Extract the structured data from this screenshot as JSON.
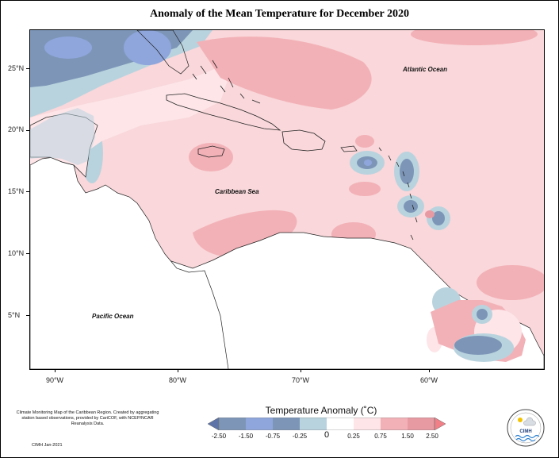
{
  "title": "Anomaly of the Mean Temperature for December 2020",
  "map": {
    "latitude_labels": [
      "25°N",
      "20°N",
      "15°N",
      "10°N",
      "5°N"
    ],
    "longitude_labels": [
      "90°W",
      "80°W",
      "70°W",
      "60°W"
    ],
    "ocean_labels": {
      "atlantic": "Atlantic Ocean",
      "caribbean": "Caribbean Sea",
      "pacific": "Pacific Ocean"
    },
    "extent": {
      "lon_min": -92,
      "lon_max": -51,
      "lat_min": 1.5,
      "lat_max": 28.5
    }
  },
  "legend": {
    "title": "Temperature Anomaly (˚C)",
    "labels": [
      "-2.50",
      "-1.50",
      "-0.75",
      "-0.25",
      "0",
      "0.25",
      "0.75",
      "1.50",
      "2.50"
    ],
    "colors": [
      "#5e74a8",
      "#8fa6dc",
      "#7d96b8",
      "#b9d3de",
      "#ffffff",
      "#fde5e8",
      "#f2b1b7",
      "#e89aa2",
      "#f07f87"
    ]
  },
  "credit": "Climate Monitoring Map of the Caribbean Region. Created by aggregating station based observations, provided by CariCOF, with NCEP/NCAR Reanalysis Data.",
  "signature": "CIMH Jan-2021",
  "logo_text": "CIMH",
  "colors": {
    "warm_light": "#f9d7da",
    "warm_mid": "#f2b1b7",
    "cool_light": "#b9d3de",
    "cool_mid": "#7d96b8",
    "cool_strong": "#8fa6dc",
    "land": "#ffffff"
  }
}
